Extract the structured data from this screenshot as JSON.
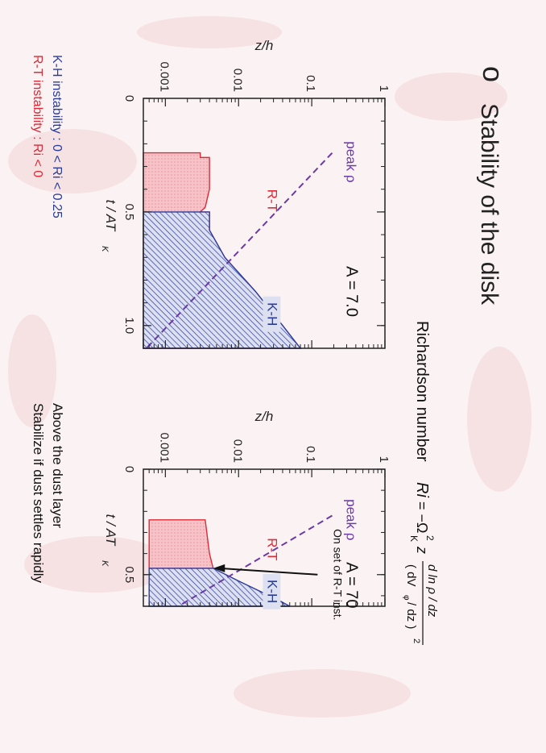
{
  "slide": {
    "title": "Stability of the disk",
    "bullet": "o",
    "richardson_label": "Richardson number",
    "formula": {
      "lhs": "Ri",
      "equals": "= −Ω",
      "sup": "2",
      "sub": "K",
      "z": "z",
      "numerator": "d ln ρ / dz",
      "denominator": "( dV",
      "denominator_sub": "φ",
      "denominator_end": "/ dz )",
      "denominator_sup": "2"
    },
    "notes": {
      "kh_line": "K-H instability :  0 < Ri < 0.25",
      "rt_line": "R-T instability :  Ri < 0",
      "above_dust": "Above the dust layer",
      "stabilize": "Stabilize if dust settles rapidly"
    },
    "colors": {
      "rt": "#dd2a37",
      "kh": "#2a3c9a",
      "peak": "#6a3aa8",
      "rt_fill": "#f6c4c8",
      "kh_fill": "#c4cae6",
      "background": "#fbf3f3"
    }
  },
  "chart_data": [
    {
      "type": "area",
      "title": "A = 7.0",
      "xlabel": "t / AT",
      "xlabel_sub": "K",
      "ylabel": "z/h",
      "xscale": "linear",
      "yscale": "log",
      "xlim": [
        0,
        1.1
      ],
      "ylim": [
        0.0005,
        1
      ],
      "xticks": [
        "0",
        "0.5",
        "1.0"
      ],
      "yticks": [
        "0.001",
        "0.01",
        "0.1",
        "1"
      ],
      "regions": [
        {
          "name": "R-T",
          "polygon": [
            [
              0.24,
              0.0005
            ],
            [
              0.24,
              0.003
            ],
            [
              0.26,
              0.003
            ],
            [
              0.26,
              0.004
            ],
            [
              0.4,
              0.004
            ],
            [
              0.48,
              0.0035
            ],
            [
              0.5,
              0.003
            ],
            [
              0.5,
              0.004
            ],
            [
              0.58,
              0.004
            ],
            [
              0.7,
              0.0065
            ],
            [
              0.85,
              0.017
            ],
            [
              1.0,
              0.04
            ],
            [
              1.1,
              0.07
            ],
            [
              1.1,
              0.0005
            ]
          ]
        },
        {
          "name": "K-H",
          "polygon": [
            [
              0.5,
              0.004
            ],
            [
              0.58,
              0.004
            ],
            [
              0.7,
              0.0065
            ],
            [
              0.85,
              0.017
            ],
            [
              1.0,
              0.04
            ],
            [
              1.1,
              0.07
            ],
            [
              1.1,
              0.0005
            ],
            [
              0.5,
              0.0005
            ]
          ]
        }
      ],
      "lines": [
        {
          "name": "peak ρ",
          "x": [
            0.24,
            1.1
          ],
          "y": [
            0.19,
            0.00055
          ]
        }
      ],
      "annotations": [
        {
          "text": "peak ρ",
          "x": 0.28,
          "y": 0.3
        },
        {
          "text": "R-T",
          "x": 0.45,
          "y": 0.025
        },
        {
          "text": "K-H",
          "x": 0.95,
          "y": 0.025
        },
        {
          "text": "A = 7.0",
          "x": 0.85,
          "y": 0.3
        }
      ]
    },
    {
      "type": "area",
      "title": "A = 70",
      "xlabel": "t / AT",
      "xlabel_sub": "K",
      "ylabel": "z/h",
      "xscale": "linear",
      "yscale": "log",
      "xlim": [
        0,
        0.65
      ],
      "ylim": [
        0.0005,
        1
      ],
      "xticks": [
        "0",
        "0.5"
      ],
      "yticks": [
        "0.001",
        "0.01",
        "0.1",
        "1"
      ],
      "regions": [
        {
          "name": "R-T",
          "polygon": [
            [
              0.24,
              0.0006
            ],
            [
              0.24,
              0.0035
            ],
            [
              0.4,
              0.004
            ],
            [
              0.47,
              0.0045
            ],
            [
              0.47,
              0.0006
            ]
          ]
        },
        {
          "name": "K-H",
          "polygon": [
            [
              0.47,
              0.0045
            ],
            [
              0.53,
              0.01
            ],
            [
              0.58,
              0.02
            ],
            [
              0.62,
              0.035
            ],
            [
              0.65,
              0.05
            ],
            [
              0.65,
              0.0006
            ],
            [
              0.47,
              0.0006
            ]
          ]
        }
      ],
      "lines": [
        {
          "name": "peak ρ",
          "x": [
            0.22,
            0.65
          ],
          "y": [
            0.19,
            0.0015
          ]
        }
      ],
      "annotations": [
        {
          "text": "peak ρ",
          "x": 0.24,
          "y": 0.3
        },
        {
          "text": "R-T",
          "x": 0.38,
          "y": 0.025
        },
        {
          "text": "K-H",
          "x": 0.58,
          "y": 0.025
        },
        {
          "text": "A = 70",
          "x": 0.55,
          "y": 0.3
        },
        {
          "text": "On set of R-T inst.",
          "x": 0.5,
          "y": 0.2
        }
      ]
    }
  ]
}
